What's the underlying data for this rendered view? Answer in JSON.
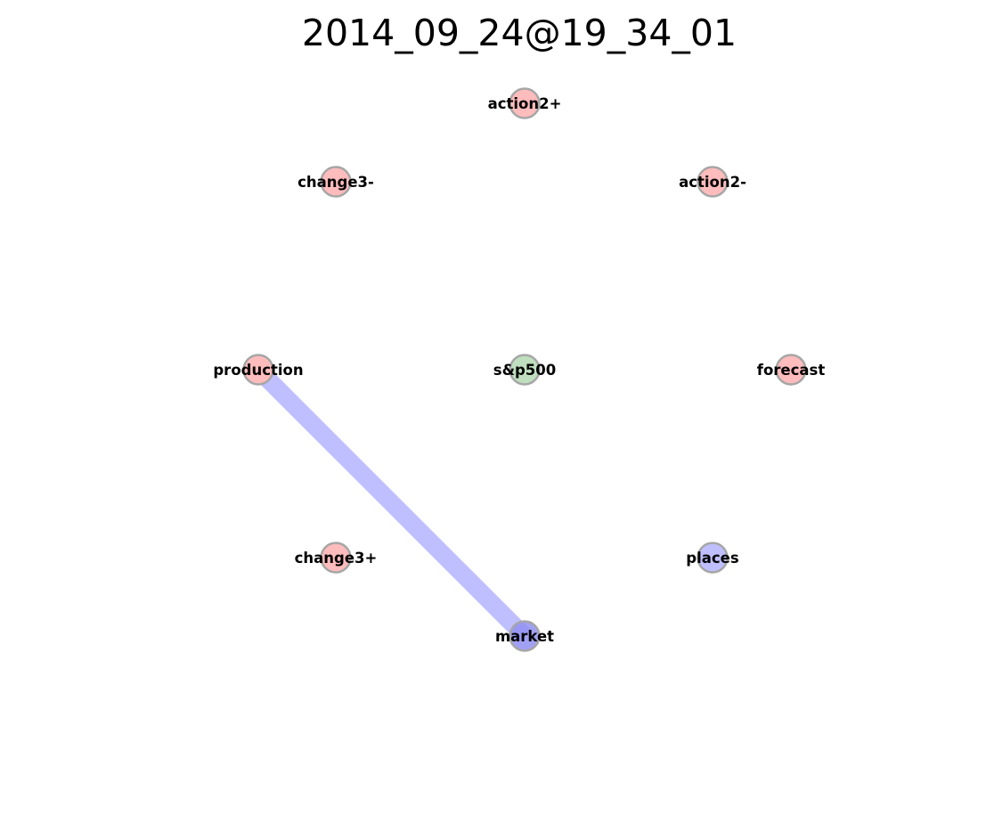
{
  "title": "2014_09_24@19_34_01",
  "colors": {
    "red_node": "#ffbcbc",
    "green_node": "#bfdfbf",
    "blue_node": "#bfbfff",
    "dark_blue_node": "#9090f2",
    "node_stroke": "#a6a6a6",
    "edge": "#bfbfff"
  },
  "nodes": [
    {
      "id": "action2plus",
      "label": "action2+",
      "color": "red"
    },
    {
      "id": "change3minus",
      "label": "change3-",
      "color": "red"
    },
    {
      "id": "action2minus",
      "label": "action2-",
      "color": "red"
    },
    {
      "id": "production",
      "label": "production",
      "color": "red"
    },
    {
      "id": "sp500",
      "label": "s&p500",
      "color": "green"
    },
    {
      "id": "forecast",
      "label": "forecast",
      "color": "red"
    },
    {
      "id": "change3plus",
      "label": "change3+",
      "color": "red"
    },
    {
      "id": "places",
      "label": "places",
      "color": "blue"
    },
    {
      "id": "market",
      "label": "market",
      "color": "dark_blue"
    }
  ],
  "edges": [
    {
      "source": "production",
      "target": "market"
    }
  ]
}
